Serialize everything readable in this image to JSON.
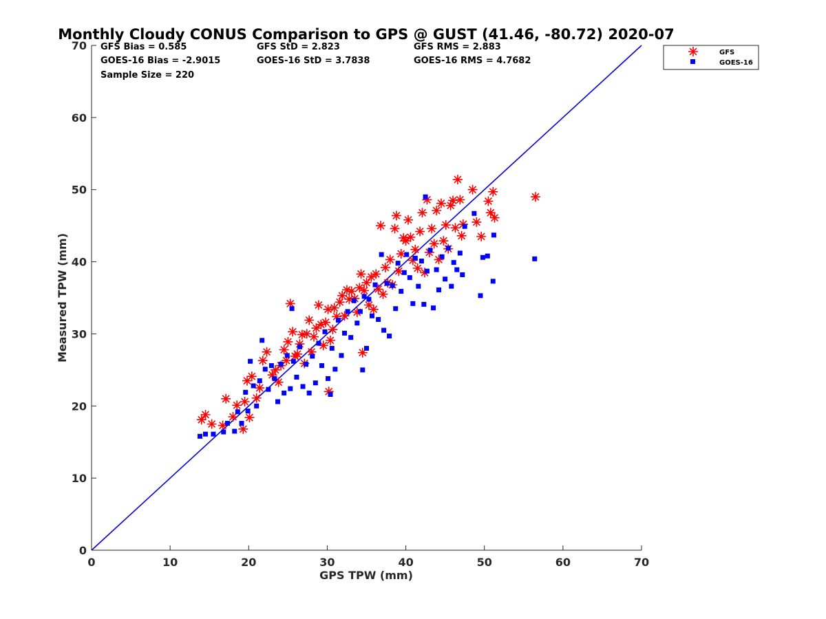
{
  "chart_data": {
    "type": "scatter",
    "title": "Monthly Cloudy CONUS Comparison to GPS @ GUST (41.46, -80.72) 2020-07",
    "xlabel": "GPS TPW (mm)",
    "ylabel": "Measured TPW (mm)",
    "xlim": [
      0,
      70
    ],
    "ylim": [
      0,
      70
    ],
    "xticks": [
      "0",
      "10",
      "20",
      "30",
      "40",
      "50",
      "60",
      "70"
    ],
    "yticks": [
      "0",
      "10",
      "20",
      "30",
      "40",
      "50",
      "60",
      "70"
    ],
    "grid": false,
    "legend_position": "top-right, outside plot",
    "reference_line": {
      "x": [
        0,
        70
      ],
      "y": [
        0,
        70
      ],
      "color": "#0000dd"
    },
    "stats": [
      "GFS Bias = 0.585",
      "GFS StD = 2.823",
      "GFS RMS = 2.883",
      "GOES-16 Bias = -2.9015",
      "GOES-16 StD = 3.7838",
      "GOES-16 RMS = 4.7682",
      "Sample Size = 220"
    ],
    "series": [
      {
        "name": "GFS",
        "marker": "asterisk",
        "color": "#ff0000",
        "points": [
          [
            14.0,
            18.1
          ],
          [
            14.5,
            18.8
          ],
          [
            15.3,
            17.5
          ],
          [
            16.7,
            17.3
          ],
          [
            17.1,
            21.0
          ],
          [
            18.0,
            18.5
          ],
          [
            18.5,
            20.1
          ],
          [
            19.3,
            16.8
          ],
          [
            19.5,
            20.6
          ],
          [
            19.8,
            23.5
          ],
          [
            20.1,
            18.4
          ],
          [
            20.4,
            24.1
          ],
          [
            21.0,
            21.1
          ],
          [
            21.4,
            22.5
          ],
          [
            21.8,
            26.3
          ],
          [
            22.3,
            27.5
          ],
          [
            23.0,
            24.3
          ],
          [
            23.4,
            25.0
          ],
          [
            23.8,
            23.3
          ],
          [
            24.1,
            25.6
          ],
          [
            24.5,
            27.8
          ],
          [
            24.8,
            26.3
          ],
          [
            25.0,
            28.9
          ],
          [
            25.3,
            34.2
          ],
          [
            25.6,
            30.3
          ],
          [
            25.9,
            26.9
          ],
          [
            26.2,
            27.2
          ],
          [
            26.5,
            28.6
          ],
          [
            26.8,
            29.9
          ],
          [
            27.1,
            25.9
          ],
          [
            27.4,
            30.0
          ],
          [
            27.7,
            31.9
          ],
          [
            28.0,
            27.5
          ],
          [
            28.3,
            29.6
          ],
          [
            28.6,
            30.8
          ],
          [
            28.9,
            34.0
          ],
          [
            29.2,
            31.3
          ],
          [
            29.5,
            28.4
          ],
          [
            29.8,
            31.6
          ],
          [
            30.1,
            33.4
          ],
          [
            30.2,
            22.0
          ],
          [
            30.4,
            29.1
          ],
          [
            30.7,
            30.6
          ],
          [
            30.9,
            33.6
          ],
          [
            31.2,
            32.4
          ],
          [
            31.6,
            34.4
          ],
          [
            31.9,
            35.3
          ],
          [
            32.2,
            32.5
          ],
          [
            32.5,
            36.1
          ],
          [
            32.8,
            34.8
          ],
          [
            33.1,
            35.9
          ],
          [
            33.5,
            34.9
          ],
          [
            33.8,
            33.0
          ],
          [
            34.1,
            36.4
          ],
          [
            34.3,
            38.3
          ],
          [
            34.5,
            27.4
          ],
          [
            34.7,
            36.0
          ],
          [
            35.0,
            37.1
          ],
          [
            35.3,
            34.0
          ],
          [
            35.6,
            37.9
          ],
          [
            35.9,
            33.4
          ],
          [
            36.2,
            38.3
          ],
          [
            36.5,
            36.2
          ],
          [
            36.8,
            45.0
          ],
          [
            37.1,
            35.5
          ],
          [
            37.4,
            39.2
          ],
          [
            37.7,
            37.1
          ],
          [
            38.0,
            40.3
          ],
          [
            38.3,
            36.8
          ],
          [
            38.6,
            44.6
          ],
          [
            38.8,
            46.4
          ],
          [
            39.1,
            38.7
          ],
          [
            39.4,
            41.1
          ],
          [
            39.7,
            43.3
          ],
          [
            40.0,
            42.9
          ],
          [
            40.3,
            45.8
          ],
          [
            40.6,
            43.4
          ],
          [
            40.9,
            40.2
          ],
          [
            41.2,
            41.7
          ],
          [
            41.5,
            39.1
          ],
          [
            41.8,
            44.2
          ],
          [
            42.1,
            46.8
          ],
          [
            42.4,
            38.5
          ],
          [
            42.7,
            48.6
          ],
          [
            43.0,
            41.3
          ],
          [
            43.3,
            44.6
          ],
          [
            43.6,
            42.5
          ],
          [
            43.9,
            47.1
          ],
          [
            44.2,
            40.3
          ],
          [
            44.5,
            48.1
          ],
          [
            44.8,
            42.9
          ],
          [
            45.1,
            45.1
          ],
          [
            45.4,
            41.8
          ],
          [
            45.7,
            47.8
          ],
          [
            46.0,
            48.5
          ],
          [
            46.3,
            44.7
          ],
          [
            46.6,
            51.4
          ],
          [
            46.9,
            48.6
          ],
          [
            47.1,
            43.6
          ],
          [
            47.3,
            45.2
          ],
          [
            48.5,
            50.0
          ],
          [
            49.0,
            45.5
          ],
          [
            49.6,
            43.5
          ],
          [
            50.5,
            48.4
          ],
          [
            50.8,
            46.8
          ],
          [
            51.1,
            49.7
          ],
          [
            51.3,
            46.1
          ],
          [
            56.5,
            49.0
          ]
        ]
      },
      {
        "name": "GOES-16",
        "marker": "square",
        "color": "#0000ff",
        "points": [
          [
            13.8,
            15.8
          ],
          [
            14.5,
            16.1
          ],
          [
            15.5,
            16.1
          ],
          [
            16.8,
            16.4
          ],
          [
            17.3,
            17.6
          ],
          [
            18.2,
            16.5
          ],
          [
            18.6,
            19.2
          ],
          [
            19.1,
            17.6
          ],
          [
            19.6,
            21.9
          ],
          [
            19.9,
            19.3
          ],
          [
            20.2,
            26.2
          ],
          [
            20.6,
            22.8
          ],
          [
            21.0,
            20.0
          ],
          [
            21.4,
            23.5
          ],
          [
            21.7,
            29.1
          ],
          [
            22.1,
            25.1
          ],
          [
            22.5,
            22.3
          ],
          [
            22.9,
            25.6
          ],
          [
            23.3,
            23.8
          ],
          [
            23.7,
            20.6
          ],
          [
            24.1,
            25.8
          ],
          [
            24.5,
            21.8
          ],
          [
            24.9,
            27.0
          ],
          [
            25.3,
            22.4
          ],
          [
            25.5,
            33.5
          ],
          [
            25.7,
            26.2
          ],
          [
            26.1,
            24.0
          ],
          [
            26.5,
            28.2
          ],
          [
            26.9,
            22.7
          ],
          [
            27.3,
            25.8
          ],
          [
            27.7,
            21.8
          ],
          [
            28.1,
            26.9
          ],
          [
            28.5,
            23.2
          ],
          [
            28.9,
            28.7
          ],
          [
            29.3,
            25.6
          ],
          [
            29.7,
            30.3
          ],
          [
            30.1,
            23.8
          ],
          [
            30.4,
            21.6
          ],
          [
            30.6,
            28.0
          ],
          [
            31.0,
            25.1
          ],
          [
            31.4,
            31.9
          ],
          [
            31.8,
            27.0
          ],
          [
            32.2,
            30.1
          ],
          [
            32.6,
            33.1
          ],
          [
            33.0,
            29.5
          ],
          [
            33.4,
            34.6
          ],
          [
            33.8,
            31.5
          ],
          [
            34.2,
            33.1
          ],
          [
            34.5,
            25.0
          ],
          [
            34.7,
            35.2
          ],
          [
            35.0,
            28.0
          ],
          [
            35.3,
            34.8
          ],
          [
            35.7,
            32.5
          ],
          [
            36.1,
            36.8
          ],
          [
            36.5,
            32.0
          ],
          [
            36.9,
            41.0
          ],
          [
            37.2,
            30.5
          ],
          [
            37.6,
            37.0
          ],
          [
            37.9,
            29.7
          ],
          [
            38.3,
            36.7
          ],
          [
            38.7,
            33.5
          ],
          [
            39.0,
            39.8
          ],
          [
            39.4,
            35.9
          ],
          [
            39.8,
            38.5
          ],
          [
            40.1,
            41.0
          ],
          [
            40.5,
            37.8
          ],
          [
            40.9,
            34.2
          ],
          [
            41.2,
            40.5
          ],
          [
            41.6,
            36.6
          ],
          [
            42.0,
            40.1
          ],
          [
            42.3,
            34.1
          ],
          [
            42.5,
            49.0
          ],
          [
            42.7,
            38.7
          ],
          [
            43.1,
            41.6
          ],
          [
            43.5,
            33.6
          ],
          [
            43.9,
            38.9
          ],
          [
            44.2,
            36.1
          ],
          [
            44.6,
            40.7
          ],
          [
            45.0,
            37.6
          ],
          [
            45.4,
            41.9
          ],
          [
            45.8,
            36.6
          ],
          [
            46.1,
            39.9
          ],
          [
            46.5,
            38.9
          ],
          [
            46.9,
            41.2
          ],
          [
            47.2,
            38.2
          ],
          [
            47.5,
            44.9
          ],
          [
            48.7,
            46.7
          ],
          [
            49.5,
            35.3
          ],
          [
            49.8,
            40.6
          ],
          [
            50.4,
            40.8
          ],
          [
            51.1,
            37.3
          ],
          [
            51.2,
            43.7
          ],
          [
            56.4,
            40.4
          ]
        ]
      }
    ]
  }
}
